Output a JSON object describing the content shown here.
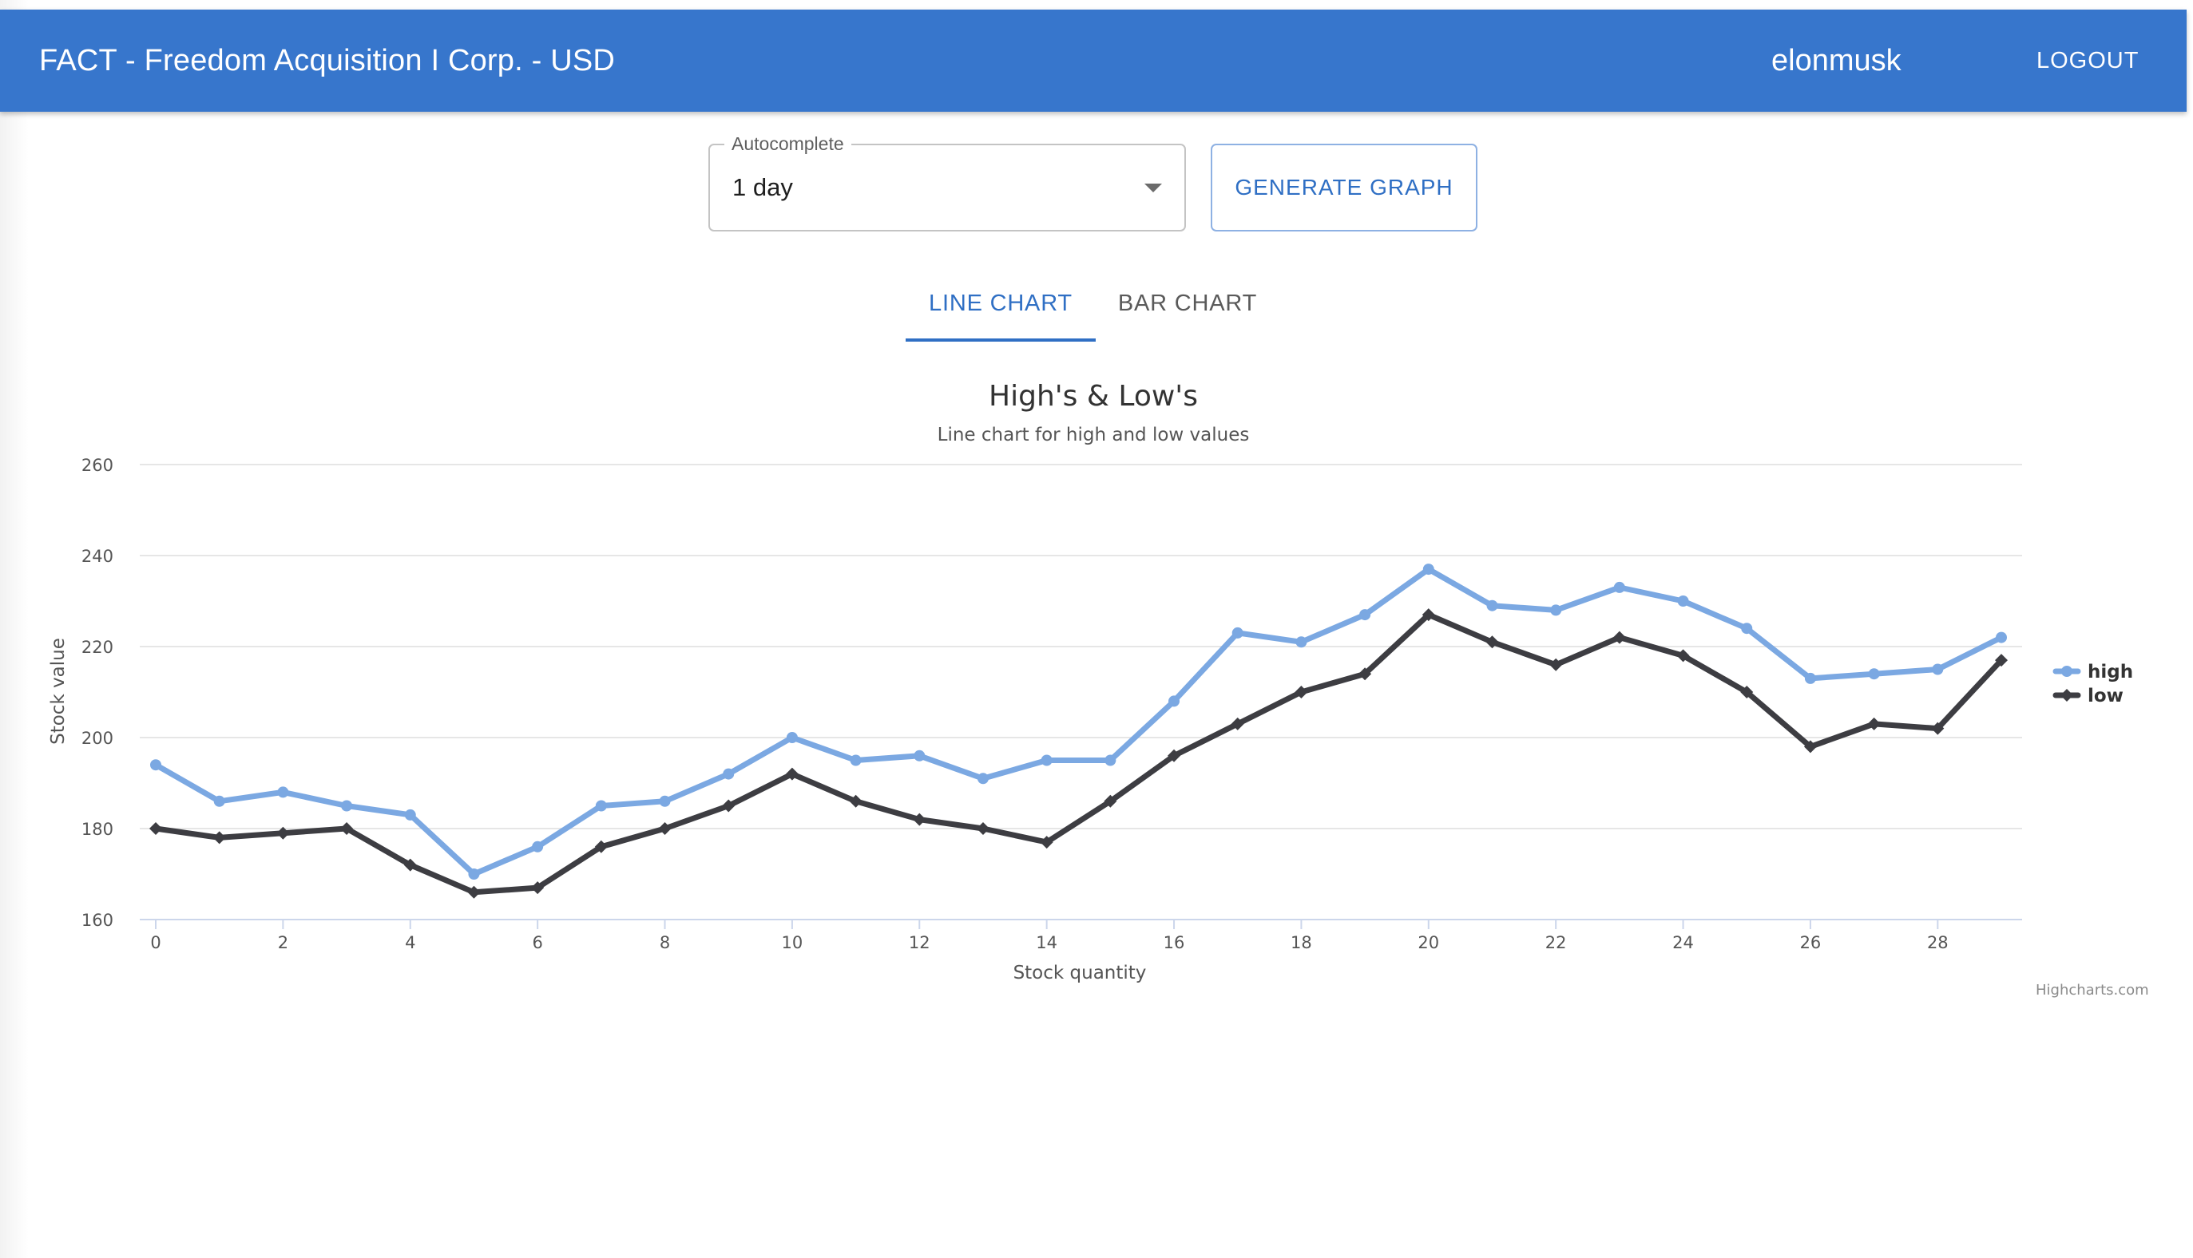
{
  "appbar": {
    "title": "FACT - Freedom Acquisition I Corp. - USD",
    "username": "elonmusk",
    "logout_label": "LOGOUT",
    "color": "#3776cc"
  },
  "controls": {
    "range_select": {
      "label": "Autocomplete",
      "value": "1 day"
    },
    "generate_label": "GENERATE GRAPH"
  },
  "tabs": [
    {
      "label": "LINE CHART",
      "active": true
    },
    {
      "label": "BAR CHART",
      "active": false
    }
  ],
  "chart_data": {
    "type": "line",
    "title": "High's & Low's",
    "subtitle": "Line chart for high and low values",
    "xlabel": "Stock quantity",
    "ylabel": "Stock value",
    "xlim": [
      0,
      29
    ],
    "ylim": [
      160,
      260
    ],
    "x_ticks": [
      0,
      2,
      4,
      6,
      8,
      10,
      12,
      14,
      16,
      18,
      20,
      22,
      24,
      26,
      28
    ],
    "y_ticks": [
      160,
      180,
      200,
      220,
      240,
      260
    ],
    "grid": true,
    "legend_position": "right",
    "x": [
      0,
      1,
      2,
      3,
      4,
      5,
      6,
      7,
      8,
      9,
      10,
      11,
      12,
      13,
      14,
      15,
      16,
      17,
      18,
      19,
      20,
      21,
      22,
      23,
      24,
      25,
      26,
      27,
      28,
      29
    ],
    "series": [
      {
        "name": "high",
        "color": "#7ba8e2",
        "marker": "circle",
        "values": [
          194,
          186,
          188,
          185,
          183,
          170,
          176,
          185,
          186,
          192,
          200,
          195,
          196,
          191,
          195,
          195,
          208,
          223,
          221,
          227,
          237,
          229,
          228,
          233,
          230,
          224,
          213,
          214,
          215,
          222
        ]
      },
      {
        "name": "low",
        "color": "#3d3d42",
        "marker": "diamond",
        "values": [
          180,
          178,
          179,
          180,
          172,
          166,
          167,
          176,
          180,
          185,
          192,
          186,
          182,
          180,
          177,
          186,
          196,
          203,
          210,
          214,
          227,
          221,
          216,
          222,
          218,
          210,
          198,
          203,
          202,
          217
        ]
      }
    ],
    "credits": "Highcharts.com"
  }
}
